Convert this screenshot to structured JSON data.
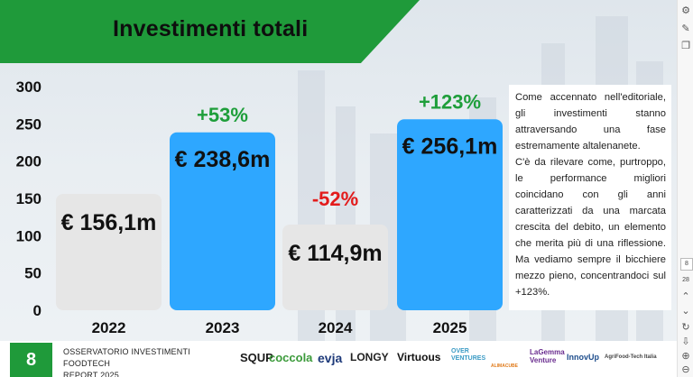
{
  "slide": {
    "title": "Investimenti totali",
    "paragraph_1": "Come accennato nell'editoriale, gli investimenti stanno attraversando una fase estremamente altalenanete.",
    "paragraph_2": "C'è da rilevare come, purtroppo, le performance migliori coincidano con gli anni caratterizzati da una marcata crescita del debito, un elemento che merita più di una riflessione. Ma vediamo sempre il bicchiere mezzo pieno, concentrandoci sul +123%."
  },
  "chart_data": {
    "type": "bar",
    "categories": [
      "2022",
      "2023",
      "2024",
      "2025"
    ],
    "values": [
      156.1,
      238.6,
      114.9,
      256.1
    ],
    "value_labels": [
      "€ 156,1m",
      "€ 238,6m",
      "€ 114,9m",
      "€ 256,1m"
    ],
    "change_labels": [
      "",
      "+53%",
      "-52%",
      "+123%"
    ],
    "yticks": [
      "0",
      "50",
      "100",
      "150",
      "200",
      "250",
      "300"
    ],
    "ylim": [
      0,
      300
    ],
    "bar_colors": [
      "#e6e6e6",
      "#2ea7ff",
      "#e6e6e6",
      "#2ea7ff"
    ],
    "change_colors": {
      "up": "#1e9e3a",
      "down": "#e31b1b"
    },
    "grid": false
  },
  "footer": {
    "page_number": "8",
    "report_line1": "OSSERVATORIO INVESTIMENTI FOODTECH",
    "report_line2": "REPORT 2025",
    "logos": [
      "SQUP",
      "coccola",
      "evja",
      "LONGY",
      "Virtuous",
      "OVER VENTURES",
      "ALIMACUBE",
      "LaGemma Venture",
      "InnovUp",
      "AgriFood-Tech Italia"
    ]
  },
  "sidebar": {
    "page_current": "8",
    "page_total": "28"
  }
}
